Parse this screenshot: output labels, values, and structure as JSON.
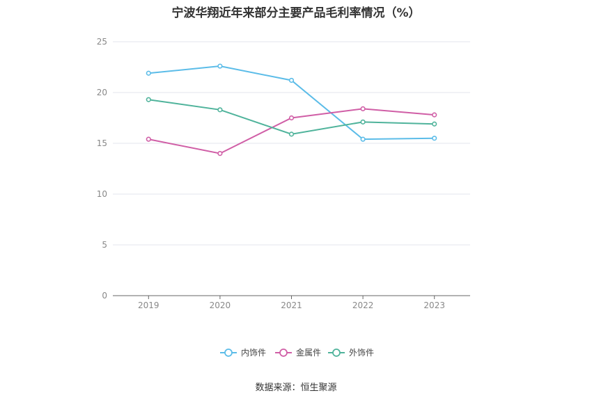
{
  "chart_data": {
    "type": "line",
    "title": "宁波华翔近年来部分主要产品毛利率情况（%）",
    "categories": [
      "2019",
      "2020",
      "2021",
      "2022",
      "2023"
    ],
    "ylim": [
      0,
      25
    ],
    "yticks": [
      "0",
      "5",
      "10",
      "15",
      "20",
      "25"
    ],
    "grid": true,
    "legend_position": "bottom",
    "series": [
      {
        "name": "内饰件",
        "color": "#5bbce8",
        "values": [
          21.9,
          22.6,
          21.2,
          15.4,
          15.5
        ]
      },
      {
        "name": "金属件",
        "color": "#d05ea6",
        "values": [
          15.4,
          14.0,
          17.5,
          18.4,
          17.8
        ]
      },
      {
        "name": "外饰件",
        "color": "#4fb39b",
        "values": [
          19.3,
          18.3,
          15.9,
          17.1,
          16.9
        ]
      }
    ]
  },
  "source": "数据来源：恒生聚源"
}
